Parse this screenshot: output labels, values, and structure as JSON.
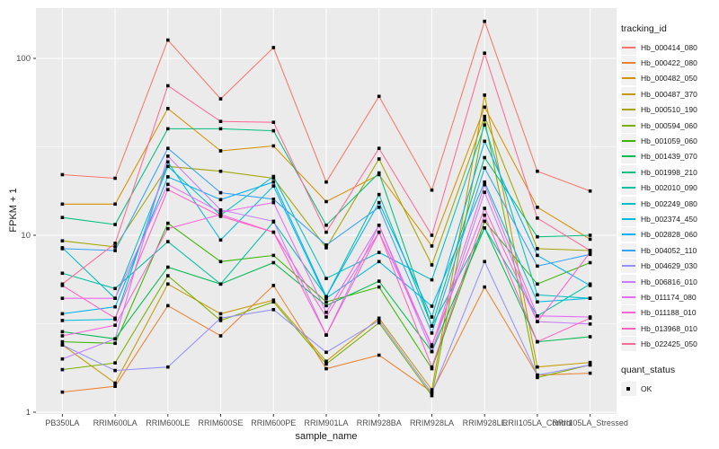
{
  "figure": {
    "y_axis": {
      "label": "FPKM + 1",
      "tick_labels": [
        "1",
        "10",
        "100"
      ]
    },
    "x_axis": {
      "label": "sample_name"
    },
    "legend": {
      "tracking_title": "tracking_id",
      "quant_title": "quant_status",
      "quant_items": [
        {
          "label": "OK",
          "marker": "black-square"
        }
      ]
    },
    "colors": {
      "panel_background": "#EBEBEB",
      "grid": "#FFFFFF",
      "tick_text": "#4D4D4D",
      "axis_text": "#1A1A1A",
      "point": "#000000",
      "legend_key_background": "#F2F2F2"
    }
  },
  "chart_data": {
    "type": "line",
    "title": "",
    "xlabel": "sample_name",
    "ylabel": "FPKM + 1",
    "y_scale": "log10",
    "ylim": [
      1,
      190
    ],
    "y_major_ticks": [
      1,
      10,
      100
    ],
    "y_minor_ticks": [
      3.162,
      31.62
    ],
    "grid": true,
    "legend_position": "right",
    "point_marker": "black-square",
    "categories": [
      "PB350LA",
      "RRIM600LA",
      "RRIM600LE",
      "RRIM600SE",
      "RRIM600PE",
      "RRIM901LA",
      "RRIM928BA",
      "RRIM928LA",
      "RRIM928LE",
      "RRII105LA_Control",
      "RRII105LA_Stressed"
    ],
    "series": [
      {
        "name": "Hb_000414_080",
        "color": "#F8766D",
        "values": [
          22,
          21,
          127,
          59,
          115,
          20,
          61,
          18,
          162,
          23,
          17.8
        ]
      },
      {
        "name": "Hb_000422_080",
        "color": "#EA8331",
        "values": [
          1.3,
          1.4,
          4.0,
          2.7,
          5.2,
          1.76,
          2.1,
          1.3,
          5.1,
          1.62,
          1.66
        ]
      },
      {
        "name": "Hb_000482_050",
        "color": "#D89000",
        "values": [
          15,
          15,
          52,
          30,
          32,
          15.5,
          22,
          8.7,
          53,
          14.4,
          9.5
        ]
      },
      {
        "name": "Hb_000487_370",
        "color": "#C49A00",
        "values": [
          2.4,
          1.46,
          5.3,
          3.6,
          4.3,
          1.94,
          3.4,
          1.34,
          62,
          1.8,
          1.91
        ]
      },
      {
        "name": "Hb_000510_190",
        "color": "#A3A500",
        "values": [
          9.3,
          8.6,
          24.5,
          23,
          21,
          8.5,
          27,
          6.8,
          47,
          8.4,
          8.2
        ]
      },
      {
        "name": "Hb_000594_060",
        "color": "#7CAE00",
        "values": [
          1.74,
          1.9,
          5.9,
          3.3,
          4.2,
          1.87,
          3.2,
          1.24,
          45,
          1.57,
          1.85
        ]
      },
      {
        "name": "Hb_001059_060",
        "color": "#39B600",
        "values": [
          2.5,
          2.45,
          11.7,
          7.1,
          7.7,
          4.2,
          5.1,
          1.76,
          12,
          5.3,
          7.0
        ]
      },
      {
        "name": "Hb_001439_070",
        "color": "#00BB4E",
        "values": [
          2.85,
          2.6,
          6.6,
          5.3,
          7.0,
          4.0,
          5.5,
          2.2,
          11,
          2.5,
          2.67
        ]
      },
      {
        "name": "Hb_001998_210",
        "color": "#00BF7D",
        "values": [
          12.6,
          11.5,
          40,
          40,
          39,
          11.4,
          22.5,
          3.07,
          27.5,
          9.8,
          10
        ]
      },
      {
        "name": "Hb_002010_090",
        "color": "#00C1A3",
        "values": [
          6.1,
          5.0,
          9.2,
          5.3,
          11.9,
          4.5,
          17,
          3.07,
          11,
          3.5,
          5.3
        ]
      },
      {
        "name": "Hb_002249_080",
        "color": "#00BFC4",
        "values": [
          8.5,
          4.4,
          24.5,
          13,
          21.5,
          5.7,
          8.0,
          5.6,
          42,
          4.6,
          4.4
        ]
      },
      {
        "name": "Hb_002374_450",
        "color": "#00BAE0",
        "values": [
          3.3,
          3.35,
          26,
          9.4,
          19,
          4.4,
          7.1,
          3.97,
          20,
          4.2,
          4.4
        ]
      },
      {
        "name": "Hb_002828_060",
        "color": "#00B0F6",
        "values": [
          3.6,
          3.94,
          21.4,
          15.9,
          20,
          4.5,
          15.3,
          3.45,
          34,
          7.7,
          5.2
        ]
      },
      {
        "name": "Hb_004052_110",
        "color": "#35A2FF",
        "values": [
          8.4,
          8.2,
          31,
          17.4,
          16,
          8.8,
          14.4,
          2.8,
          24,
          6.7,
          7.8
        ]
      },
      {
        "name": "Hb_004629_030",
        "color": "#9590FF",
        "values": [
          2.4,
          1.72,
          1.8,
          3.4,
          3.8,
          2.18,
          3.3,
          1.28,
          7.1,
          1.62,
          1.85
        ]
      },
      {
        "name": "Hb_006816_010",
        "color": "#C77CFF",
        "values": [
          2.0,
          2.6,
          28,
          13.9,
          12,
          2.73,
          11.4,
          2.2,
          17.5,
          3.25,
          3.15
        ]
      },
      {
        "name": "Hb_011174_080",
        "color": "#E76BF3",
        "values": [
          4.4,
          4.4,
          19.4,
          13.5,
          15.3,
          3.67,
          11.4,
          2.35,
          19.3,
          3.5,
          3.45
        ]
      },
      {
        "name": "Hb_011188_010",
        "color": "#FA62DB",
        "values": [
          2.7,
          3.1,
          10.9,
          13.1,
          10.4,
          3.45,
          10.4,
          2.4,
          14.2,
          3.25,
          8.0
        ]
      },
      {
        "name": "Hb_013968_010",
        "color": "#FF61C3",
        "values": [
          5.2,
          3.4,
          18.1,
          12.8,
          10.4,
          2.73,
          10.4,
          1.8,
          13,
          2.5,
          3.4
        ]
      },
      {
        "name": "Hb_022425_050",
        "color": "#FF6A98",
        "values": [
          5.3,
          9.0,
          70,
          44,
          43.5,
          10.4,
          31,
          10,
          107,
          12.5,
          8.2
        ]
      }
    ]
  }
}
